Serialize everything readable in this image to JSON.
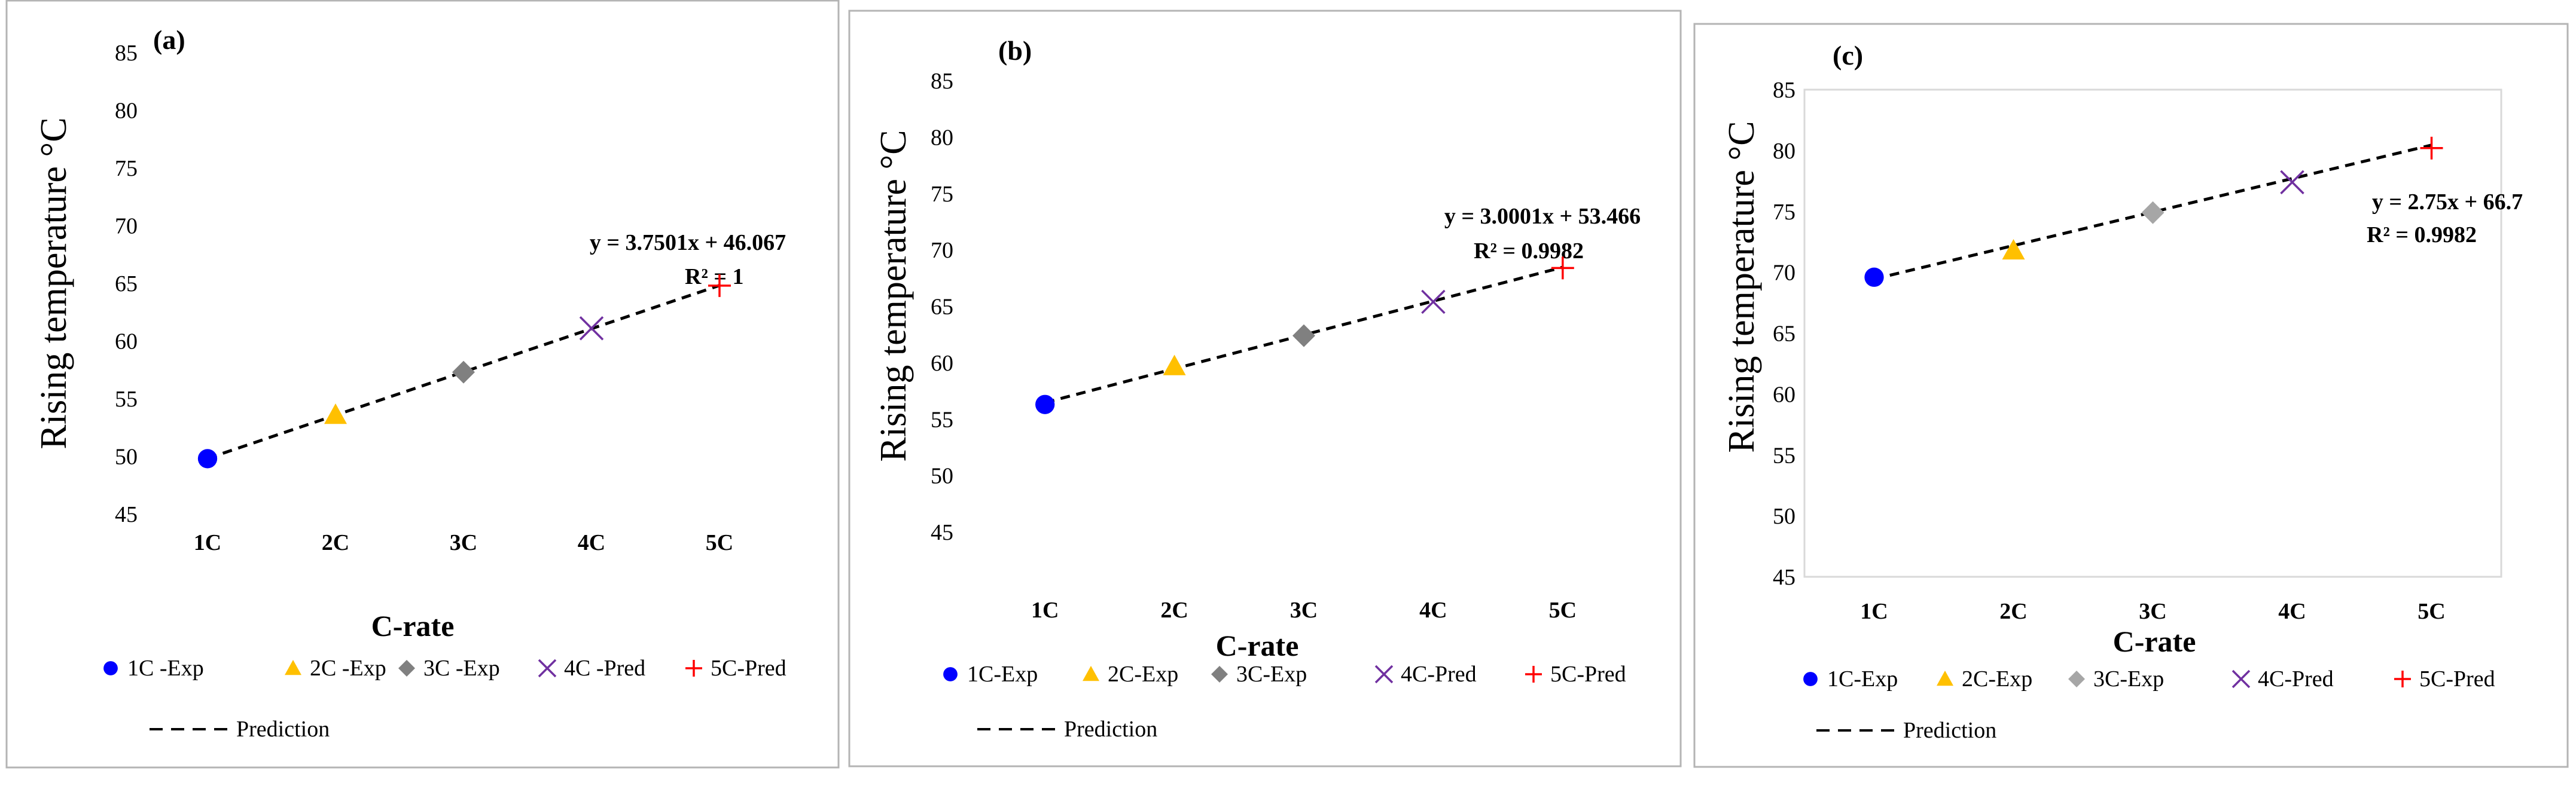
{
  "colors": {
    "frame": "#b4b4b4",
    "plot_border": "#d9d9d9",
    "exp1": "#0000ff",
    "exp2": "#ffc000",
    "exp3": "#808080",
    "exp3_c": "#a6a6a6",
    "pred4": "#7030a0",
    "pred5": "#ff0000",
    "line": "#000000"
  },
  "chart_data": [
    {
      "type": "scatter",
      "panel_label": "(a)",
      "ylabel": "Rising temperature °C",
      "xlabel": "C-rate",
      "categories": [
        "1C",
        "2C",
        "3C",
        "4C",
        "5C"
      ],
      "ylim": [
        45,
        85
      ],
      "yticks": [
        "45",
        "50",
        "55",
        "60",
        "65",
        "70",
        "75",
        "80",
        "85"
      ],
      "series": [
        {
          "name": "1C -Exp",
          "x": "1C",
          "y": 49.8,
          "marker": "circle",
          "color": "#0000ff"
        },
        {
          "name": "2C -Exp",
          "x": "2C",
          "y": 53.6,
          "marker": "triangle",
          "color": "#ffc000"
        },
        {
          "name": "3C -Exp",
          "x": "3C",
          "y": 57.3,
          "marker": "diamond",
          "color": "#808080"
        },
        {
          "name": "4C -Pred",
          "x": "4C",
          "y": 61.1,
          "marker": "x",
          "color": "#7030a0"
        },
        {
          "name": "5C -Pred",
          "x": "5C",
          "y": 64.8,
          "marker": "plus",
          "color": "#ff0000"
        }
      ],
      "trendline": {
        "name": "Prediction",
        "slope": 3.7501,
        "intercept": 46.067
      },
      "equation": "y = 3.7501x + 46.067",
      "r2": "R² = 1",
      "legend_items": [
        "1C -Exp",
        "2C -Exp",
        "3C -Exp",
        "4C -Pred",
        "5C-Pred"
      ],
      "legend_line": "Prediction"
    },
    {
      "type": "scatter",
      "panel_label": "(b)",
      "ylabel": "Rising temperature °C",
      "xlabel": "C-rate",
      "categories": [
        "1C",
        "2C",
        "3C",
        "4C",
        "5C"
      ],
      "ylim": [
        45,
        85
      ],
      "yticks": [
        "45",
        "50",
        "55",
        "60",
        "65",
        "70",
        "75",
        "80",
        "85"
      ],
      "series": [
        {
          "name": "1C-Exp",
          "x": "1C",
          "y": 56.3,
          "marker": "circle",
          "color": "#0000ff"
        },
        {
          "name": "2C-Exp",
          "x": "2C",
          "y": 59.7,
          "marker": "triangle",
          "color": "#ffc000"
        },
        {
          "name": "3C-Exp",
          "x": "3C",
          "y": 62.4,
          "marker": "diamond",
          "color": "#808080"
        },
        {
          "name": "4C-Pred",
          "x": "4C",
          "y": 65.4,
          "marker": "x",
          "color": "#7030a0"
        },
        {
          "name": "5C-Pred",
          "x": "5C",
          "y": 68.4,
          "marker": "plus",
          "color": "#ff0000"
        }
      ],
      "trendline": {
        "name": "Prediction",
        "slope": 3.0001,
        "intercept": 53.466
      },
      "equation": "y = 3.0001x + 53.466",
      "r2": "R² = 0.9982",
      "legend_items": [
        "1C-Exp",
        "2C-Exp",
        "3C-Exp",
        "4C-Pred",
        "5C-Pred"
      ],
      "legend_line": "Prediction"
    },
    {
      "type": "scatter",
      "panel_label": "(c)",
      "ylabel": "Rising temperature °C",
      "xlabel": "C-rate",
      "categories": [
        "1C",
        "2C",
        "3C",
        "4C",
        "5C"
      ],
      "ylim": [
        45,
        85
      ],
      "yticks": [
        "45",
        "50",
        "55",
        "60",
        "65",
        "70",
        "75",
        "80",
        "85"
      ],
      "series": [
        {
          "name": "1C-Exp",
          "x": "1C",
          "y": 69.6,
          "marker": "circle",
          "color": "#0000ff"
        },
        {
          "name": "2C-Exp",
          "x": "2C",
          "y": 71.8,
          "marker": "triangle",
          "color": "#ffc000"
        },
        {
          "name": "3C-Exp",
          "x": "3C",
          "y": 74.9,
          "marker": "diamond",
          "color": "#a6a6a6"
        },
        {
          "name": "4C-Pred",
          "x": "4C",
          "y": 77.4,
          "marker": "x",
          "color": "#7030a0"
        },
        {
          "name": "5C-Pred",
          "x": "5C",
          "y": 80.2,
          "marker": "plus",
          "color": "#ff0000"
        }
      ],
      "trendline": {
        "name": "Prediction",
        "slope": 2.75,
        "intercept": 66.7
      },
      "equation": "y = 2.75x + 66.7",
      "r2": "R² = 0.9982",
      "legend_items": [
        "1C-Exp",
        "2C-Exp",
        "3C-Exp",
        "4C-Pred",
        "5C-Pred"
      ],
      "legend_line": "Prediction"
    }
  ]
}
